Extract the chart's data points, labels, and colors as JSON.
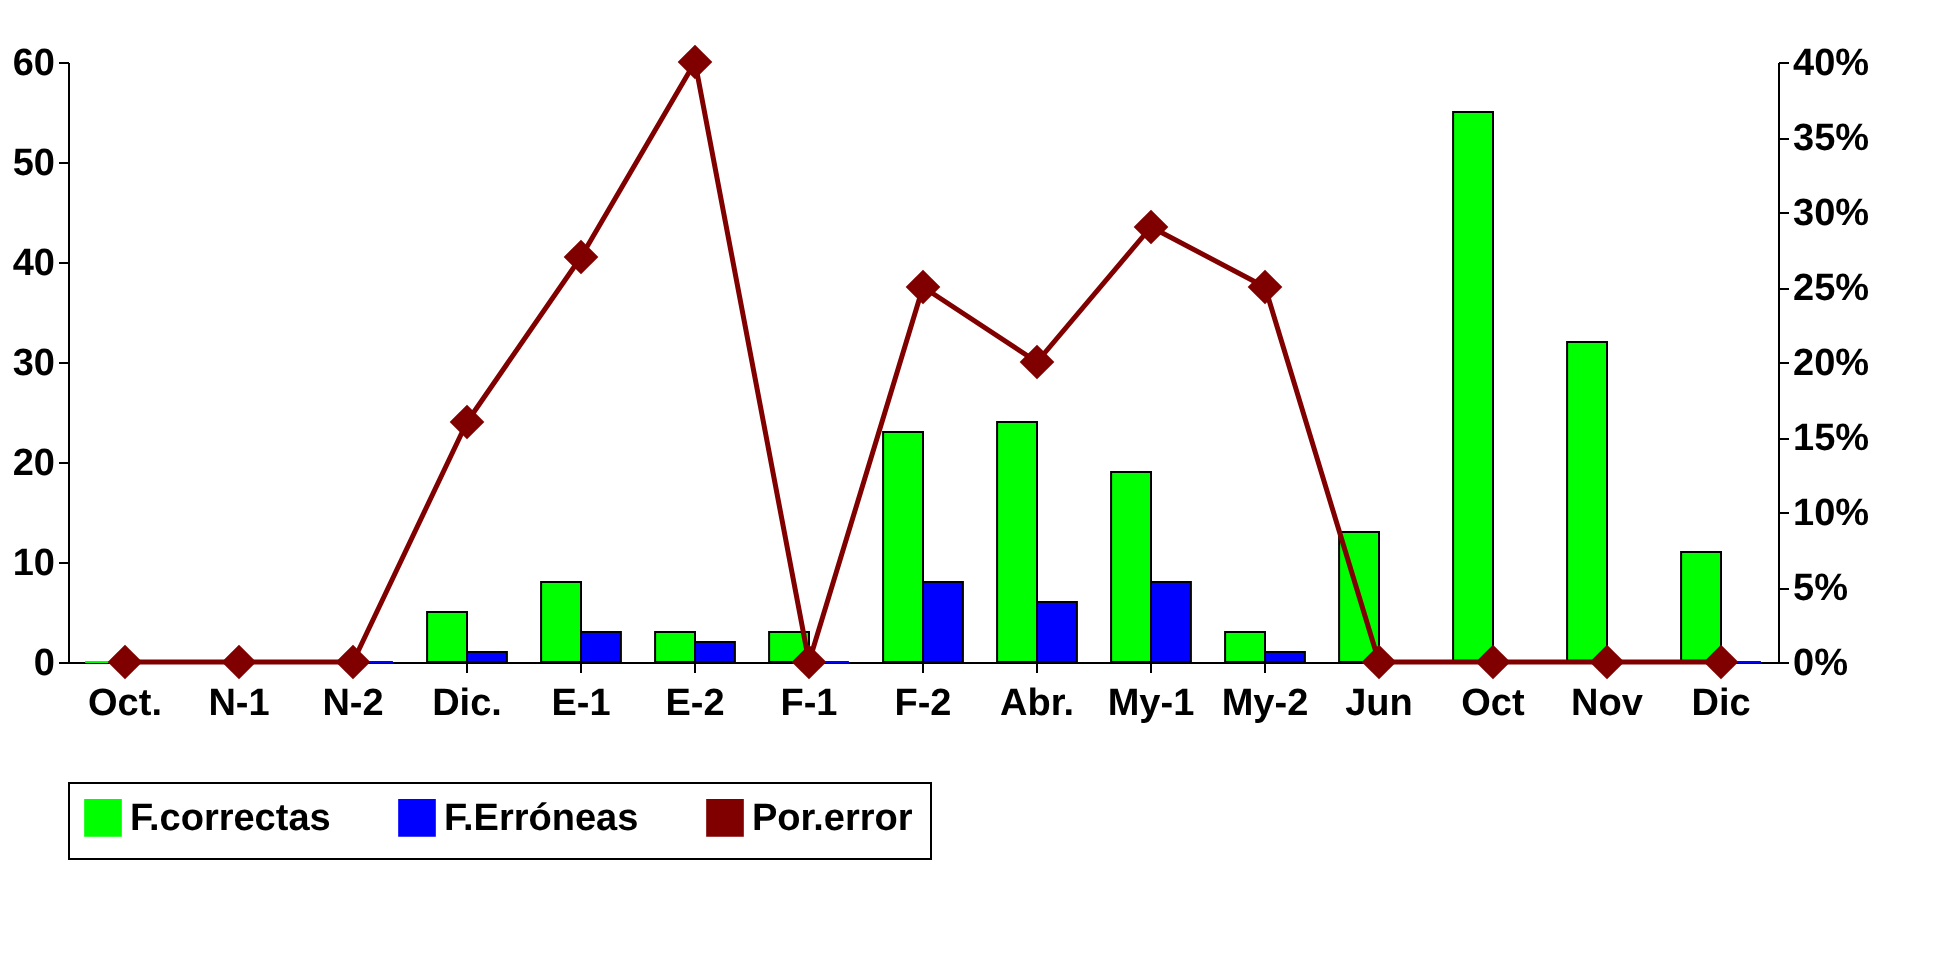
{
  "chart_data": {
    "type": "bar",
    "categories": [
      "Oct.",
      "N-1",
      "N-2",
      "Dic.",
      "E-1",
      "E-2",
      "F-1",
      "F-2",
      "Abr.",
      "My-1",
      "My-2",
      "Jun",
      "Oct",
      "Nov",
      "Dic"
    ],
    "series": [
      {
        "name": "F.correctas",
        "color": "#00ff00",
        "values": [
          0,
          0,
          0,
          5,
          8,
          3,
          3,
          23,
          24,
          19,
          3,
          13,
          55,
          32,
          11
        ]
      },
      {
        "name": "F.Erróneas",
        "color": "#0000ff",
        "values": [
          0,
          0,
          0,
          1,
          3,
          2,
          0,
          8,
          6,
          8,
          1,
          0,
          0,
          0,
          0
        ]
      },
      {
        "name": "Por.error",
        "type": "line",
        "axis": "y2",
        "color": "#800000",
        "marker": "diamond",
        "values": [
          0,
          0,
          0,
          16,
          27,
          40,
          0,
          25,
          20,
          29,
          25,
          0,
          0,
          0,
          0
        ]
      }
    ],
    "ylim": [
      0,
      60
    ],
    "yticks": [
      0,
      10,
      20,
      30,
      40,
      50,
      60
    ],
    "y2lim": [
      0,
      40
    ],
    "y2ticks": [
      {
        "value": 0,
        "label": "0%"
      },
      {
        "value": 5,
        "label": "5%"
      },
      {
        "value": 10,
        "label": "10%"
      },
      {
        "value": 15,
        "label": "15%"
      },
      {
        "value": 20,
        "label": "20%"
      },
      {
        "value": 25,
        "label": "25%"
      },
      {
        "value": 30,
        "label": "30%"
      },
      {
        "value": 35,
        "label": "35%"
      },
      {
        "value": 40,
        "label": "40%"
      }
    ],
    "grid": false,
    "legend": "bottom"
  }
}
